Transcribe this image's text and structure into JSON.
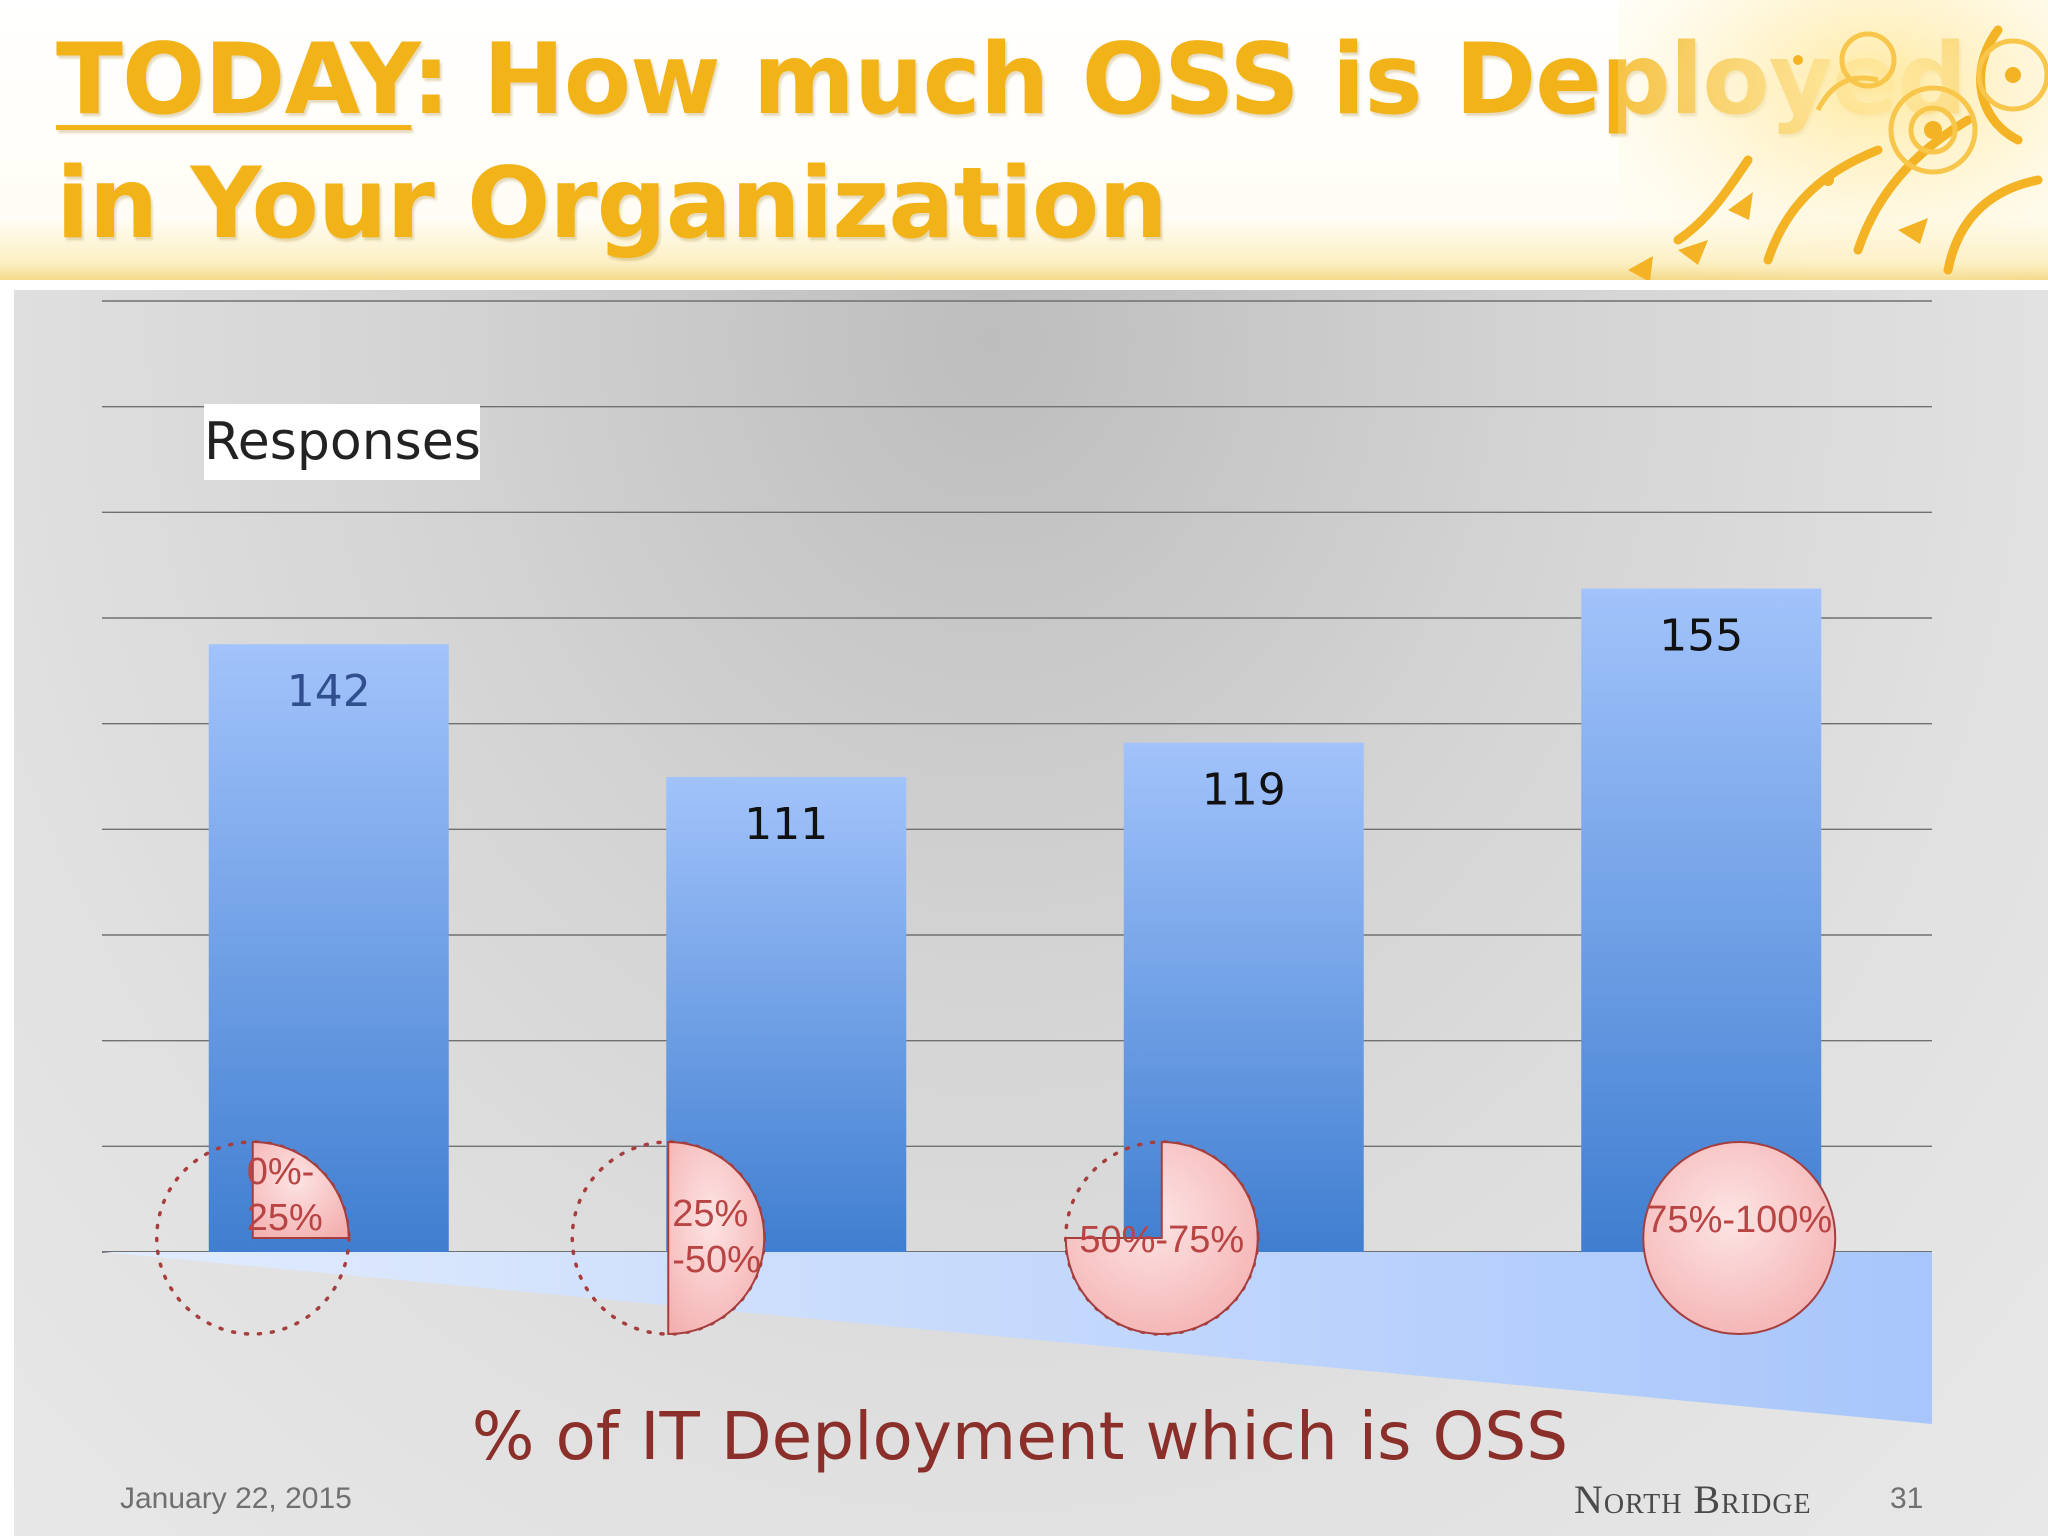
{
  "slide": {
    "title_highlight": "TODAY",
    "title_rest": ": How much OSS is Deployed in Your Organization",
    "date": "January 22, 2015",
    "brand": "North Bridge",
    "page_number": "31"
  },
  "chart_data": {
    "type": "bar",
    "title": "",
    "ylabel": "Responses",
    "xlabel": "% of IT Deployment which is OSS",
    "categories": [
      "0%-25%",
      "25%-50%",
      "50%-75%",
      "75%-100%"
    ],
    "category_label_lines": [
      [
        "0%-",
        "25%"
      ],
      [
        "25%",
        "-50%"
      ],
      [
        "50%-75%"
      ],
      [
        "75%-100%"
      ]
    ],
    "category_fractions": [
      0.25,
      0.5,
      0.75,
      1.0
    ],
    "values": [
      142,
      111,
      119,
      155
    ],
    "data_labels": [
      "142",
      "111",
      "119",
      "155"
    ],
    "ylim": [
      0,
      200
    ],
    "grid": true,
    "gridline_count": 9,
    "colors": {
      "bar_top": "#a2c3fb",
      "bar_bottom": "#3f7ed0",
      "pie_fill": "#f8c0c0",
      "pie_stroke": "#a63e3e",
      "pie_text": "#b84444",
      "wedge": "#b2cdfb",
      "gridline": "#707070"
    }
  }
}
